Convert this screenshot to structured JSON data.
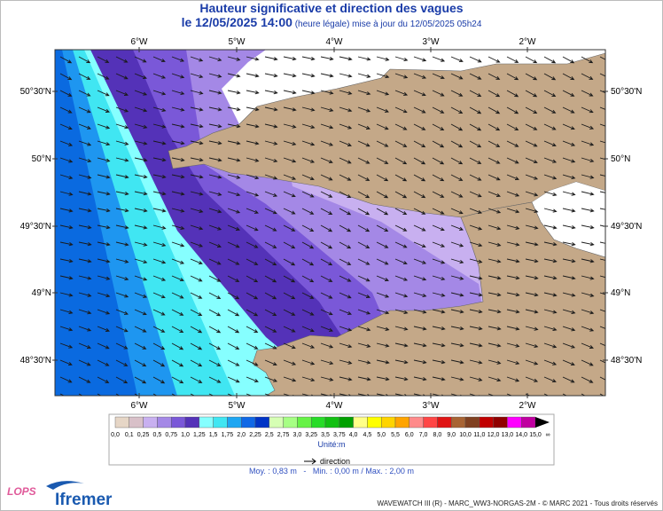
{
  "header": {
    "title": "Hauteur significative et direction des vagues",
    "date": "le 12/05/2025 14:00",
    "note": " (heure légale) mise à jour du 12/05/2025 05h24"
  },
  "map": {
    "lon_labels": [
      "6°W",
      "5°W",
      "4°W",
      "3°W",
      "2°W"
    ],
    "lat_labels": [
      "50°30'N",
      "50°N",
      "49°30'N",
      "49°N",
      "48°30'N"
    ]
  },
  "legend": {
    "labels": [
      "0,0",
      "0,1",
      "0,25",
      "0,5",
      "0,75",
      "1,0",
      "1,25",
      "1,5",
      "1,75",
      "2,0",
      "2,25",
      "2,5",
      "2,75",
      "3,0",
      "3,25",
      "3,5",
      "3,75",
      "4,0",
      "4,5",
      "5,0",
      "5,5",
      "6,0",
      "7,0",
      "8,0",
      "9,0",
      "10,0",
      "11,0",
      "12,0",
      "13,0",
      "14,0",
      "15,0",
      "∞"
    ],
    "colors": [
      "#e6d6c6",
      "#d8c0c8",
      "#c8b0f0",
      "#a488e6",
      "#7a58d8",
      "#5432b8",
      "#86ffff",
      "#40e6f2",
      "#1ea6f2",
      "#1068e6",
      "#0034c6",
      "#d6ffb4",
      "#a6ff84",
      "#66f246",
      "#28dc28",
      "#12c012",
      "#00a000",
      "#ffff88",
      "#ffff00",
      "#ffd400",
      "#ffa400",
      "#ff8a8a",
      "#ff4646",
      "#e01414",
      "#a86434",
      "#804020",
      "#c00000",
      "#900000",
      "#ff00ff",
      "#c000a0"
    ],
    "unit": "Unité:m",
    "direction": "direction"
  },
  "stats": "Moy. : 0,83 m   -   Min. : 0,00 m / Max. : 2,00 m",
  "logos": [
    "LOPS",
    "Ifremer"
  ],
  "footer": "WAVEWATCH III (R) - MARC_WW3-NORGAS-2M - © MARC 2021 - Tous droits réservés"
}
